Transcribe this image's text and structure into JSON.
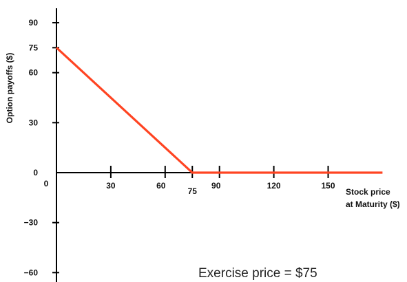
{
  "chart_data": {
    "type": "line",
    "title": "",
    "xlabel_lines": [
      "Stock price",
      "at Maturity ($)"
    ],
    "ylabel": "Option payoffs ($)",
    "x_ticks": [
      0,
      30,
      60,
      75,
      90,
      120,
      150
    ],
    "y_ticks": [
      90,
      75,
      60,
      30,
      0,
      -30,
      -60
    ],
    "xlim": [
      0,
      180
    ],
    "ylim": [
      -60,
      95
    ],
    "grid": false,
    "legend": "none",
    "series": [
      {
        "x": [
          0,
          75,
          180
        ],
        "y": [
          75,
          0,
          0
        ],
        "color": "#ff4422"
      }
    ],
    "annotation": "Exercise price = $75"
  }
}
